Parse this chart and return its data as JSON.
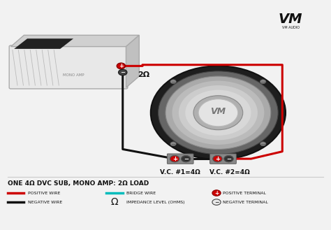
{
  "bg_color": "#f2f2f2",
  "title": "ONE 4Ω DVC SUB, MONO AMP: 2Ω LOAD",
  "label_2ohm": "2Ω",
  "label_vc1": "V.C. #1=4Ω",
  "label_vc2": "V.C. #2=4Ω",
  "wire_red": "#cc0000",
  "wire_black": "#111111",
  "wire_bridge": "#00bbbb",
  "logo_color": "#111111",
  "brand": "VM",
  "brand_sub": "VM AUDIO"
}
